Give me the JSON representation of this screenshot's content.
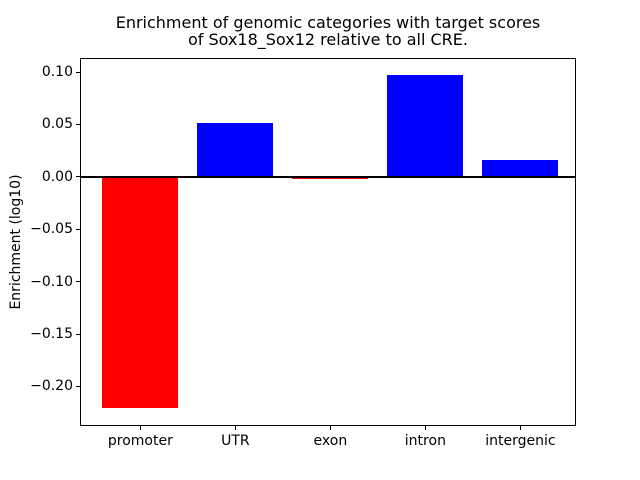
{
  "chart_data": {
    "type": "bar",
    "title": "Enrichment of genomic categories with target scores\nof Sox18_Sox12 relative to all CRE.",
    "title_lines": [
      "Enrichment of genomic categories with target scores",
      "of Sox18_Sox12 relative to all CRE."
    ],
    "xlabel": "",
    "ylabel": "Enrichment (log10)",
    "categories": [
      "promoter",
      "UTR",
      "exon",
      "intron",
      "intergenic"
    ],
    "values": [
      -0.221,
      0.051,
      -0.002,
      0.097,
      0.016
    ],
    "bar_colors": [
      "#ff0000",
      "#0000ff",
      "#ff0000",
      "#0000ff",
      "#0000ff"
    ],
    "positive_color": "#0000ff",
    "negative_color": "#ff0000",
    "ylim": [
      -0.2368,
      0.1125
    ],
    "yticks": [
      {
        "value": 0.1,
        "label": "0.10"
      },
      {
        "value": 0.05,
        "label": "0.05"
      },
      {
        "value": 0.0,
        "label": "0.00"
      },
      {
        "value": -0.05,
        "label": "−0.05"
      },
      {
        "value": -0.1,
        "label": "−0.10"
      },
      {
        "value": -0.15,
        "label": "−0.15"
      },
      {
        "value": -0.2,
        "label": "−0.20"
      }
    ],
    "grid": false,
    "legend": "none",
    "background_color": "#ffffff",
    "axis_color": "#000000"
  }
}
